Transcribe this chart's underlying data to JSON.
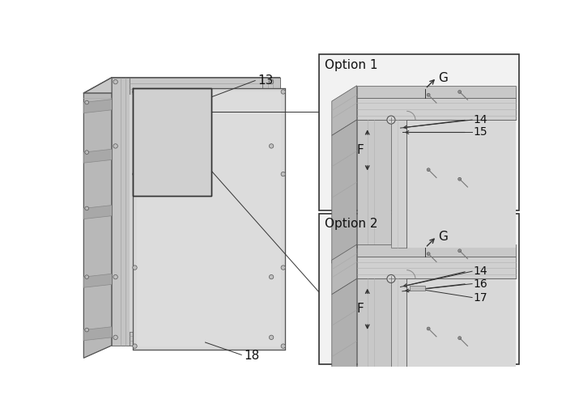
{
  "bg_color": "#ffffff",
  "lc": "#333333",
  "gray1": "#d4d4d4",
  "gray2": "#c0c0c0",
  "gray3": "#b8b8b8",
  "gray4": "#e0e0e0",
  "gray5": "#a8a8a8",
  "gray6": "#cccccc",
  "screw_fc": "#c8c8c8",
  "screw_ec": "#555555",
  "option1_label": "Option 1",
  "option2_label": "Option 2",
  "label_13": "13",
  "label_18": "18",
  "label_F": "F",
  "label_G": "G",
  "label_14": "14",
  "label_15": "15",
  "label_16": "16",
  "label_17": "17"
}
